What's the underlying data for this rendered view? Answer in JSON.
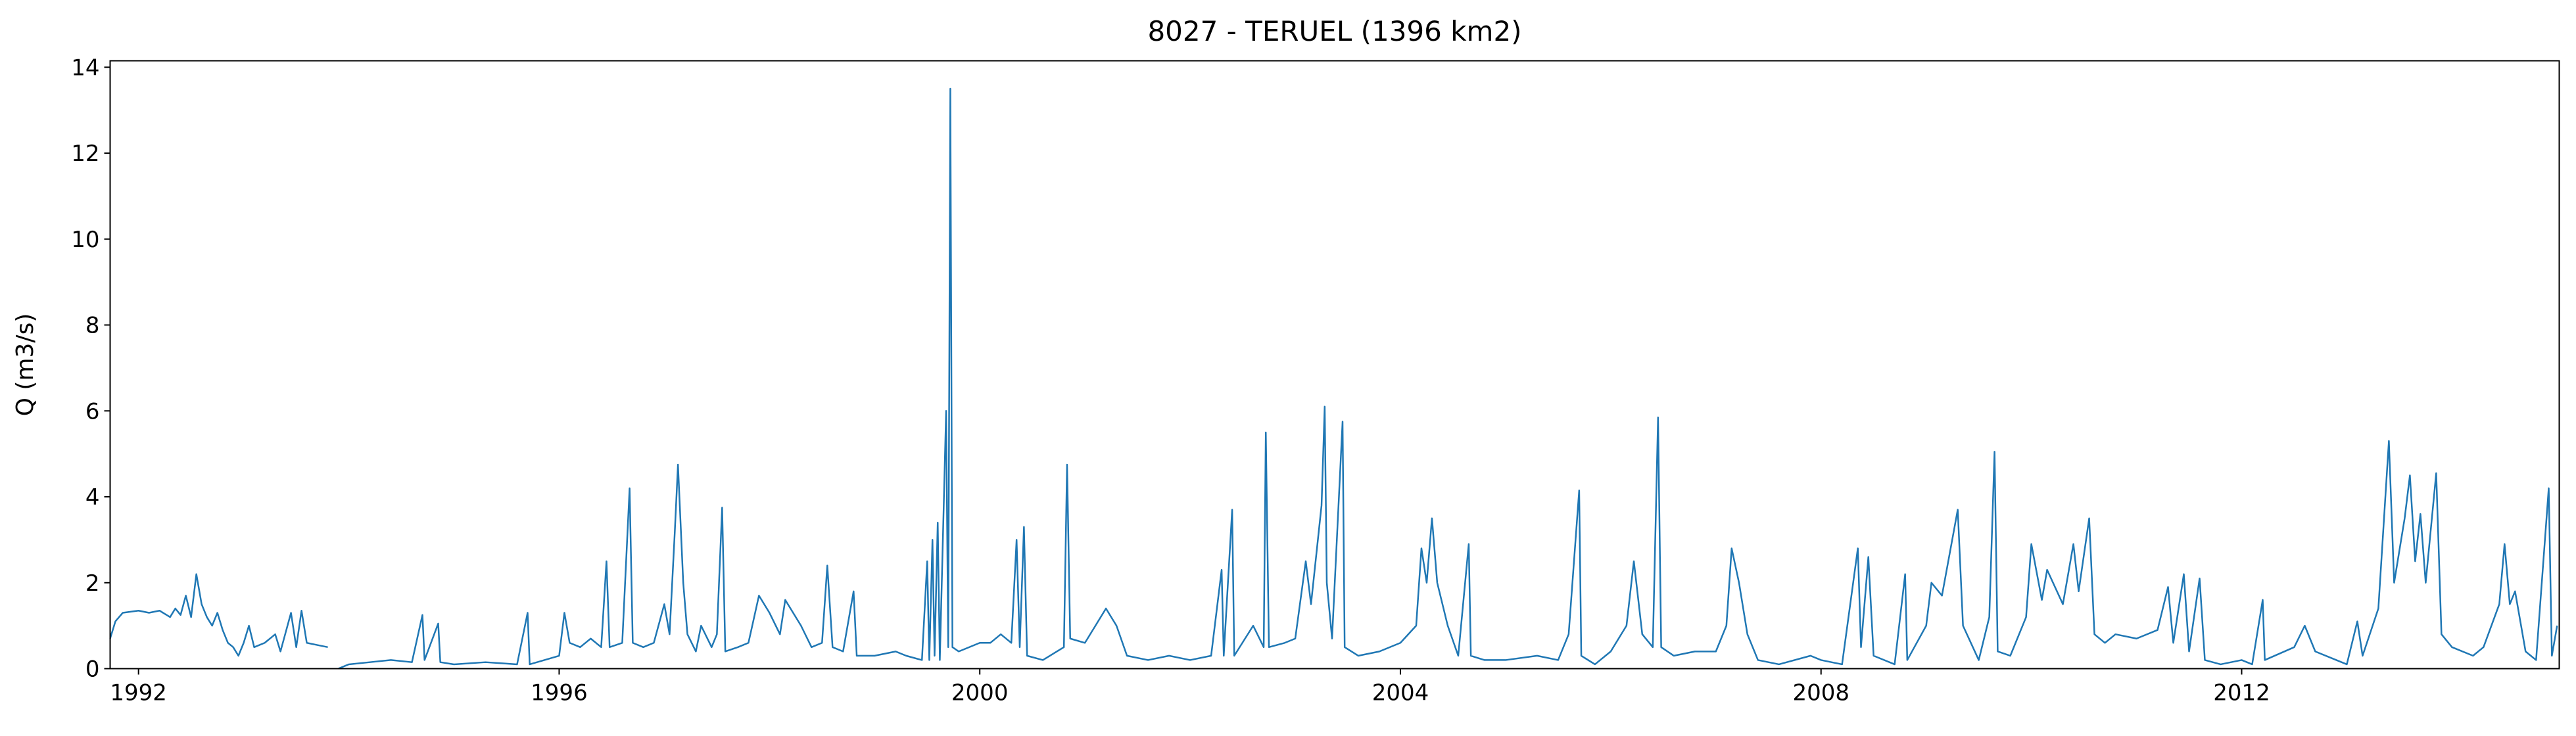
{
  "chart_data": {
    "type": "line",
    "title": "8027 - TERUEL (1396 km2)",
    "y_label": "Q (m3/s)",
    "color": "#1f77b4",
    "xlim": [
      1991.73,
      2015.02
    ],
    "xticks": [
      1992,
      1996,
      2000,
      2004,
      2008,
      2012
    ],
    "ylim": [
      0,
      14.15
    ],
    "yticks": [
      0,
      2,
      4,
      6,
      8,
      10,
      12,
      14
    ],
    "x": [
      1991.73,
      1991.78,
      1991.85,
      1992.0,
      1992.1,
      1992.2,
      1992.3,
      1992.35,
      1992.4,
      1992.45,
      1992.5,
      1992.55,
      1992.6,
      1992.65,
      1992.7,
      1992.75,
      1992.8,
      1992.85,
      1992.9,
      1992.95,
      1993.0,
      1993.05,
      1993.1,
      1993.2,
      1993.3,
      1993.35,
      1993.45,
      1993.5,
      1993.55,
      1993.6,
      1993.7,
      1993.8,
      1993.85,
      1993.9,
      1994.0,
      1994.2,
      1994.4,
      1994.6,
      1994.7,
      1994.72,
      1994.85,
      1994.87,
      1995.0,
      1995.3,
      1995.6,
      1995.7,
      1995.72,
      1996.0,
      1996.05,
      1996.1,
      1996.2,
      1996.3,
      1996.4,
      1996.45,
      1996.48,
      1996.6,
      1996.67,
      1996.7,
      1996.8,
      1996.9,
      1997.0,
      1997.05,
      1997.1,
      1997.13,
      1997.18,
      1997.22,
      1997.3,
      1997.35,
      1997.45,
      1997.5,
      1997.55,
      1997.58,
      1997.7,
      1997.8,
      1997.9,
      1998.0,
      1998.1,
      1998.15,
      1998.3,
      1998.4,
      1998.5,
      1998.55,
      1998.6,
      1998.7,
      1998.8,
      1998.83,
      1999.0,
      1999.2,
      1999.3,
      1999.45,
      1999.5,
      1999.52,
      1999.55,
      1999.57,
      1999.6,
      1999.62,
      1999.68,
      1999.7,
      1999.72,
      1999.74,
      1999.8,
      2000.0,
      2000.1,
      2000.2,
      2000.3,
      2000.35,
      2000.38,
      2000.42,
      2000.45,
      2000.6,
      2000.8,
      2000.83,
      2000.86,
      2001.0,
      2001.2,
      2001.3,
      2001.4,
      2001.6,
      2001.8,
      2002.0,
      2002.2,
      2002.3,
      2002.32,
      2002.4,
      2002.42,
      2002.6,
      2002.7,
      2002.72,
      2002.75,
      2002.9,
      2003.0,
      2003.1,
      2003.15,
      2003.25,
      2003.28,
      2003.3,
      2003.35,
      2003.45,
      2003.47,
      2003.6,
      2003.8,
      2004.0,
      2004.15,
      2004.2,
      2004.25,
      2004.3,
      2004.35,
      2004.45,
      2004.55,
      2004.65,
      2004.67,
      2004.8,
      2005.0,
      2005.3,
      2005.5,
      2005.6,
      2005.7,
      2005.72,
      2005.85,
      2006.0,
      2006.15,
      2006.22,
      2006.3,
      2006.4,
      2006.45,
      2006.48,
      2006.6,
      2006.8,
      2007.0,
      2007.1,
      2007.15,
      2007.22,
      2007.3,
      2007.4,
      2007.6,
      2007.9,
      2008.0,
      2008.2,
      2008.35,
      2008.38,
      2008.45,
      2008.5,
      2008.7,
      2008.8,
      2008.82,
      2009.0,
      2009.05,
      2009.15,
      2009.3,
      2009.35,
      2009.5,
      2009.6,
      2009.65,
      2009.68,
      2009.8,
      2009.95,
      2010.0,
      2010.1,
      2010.15,
      2010.3,
      2010.4,
      2010.45,
      2010.55,
      2010.6,
      2010.7,
      2010.8,
      2011.0,
      2011.2,
      2011.3,
      2011.35,
      2011.45,
      2011.5,
      2011.6,
      2011.65,
      2011.8,
      2012.0,
      2012.1,
      2012.2,
      2012.22,
      2012.5,
      2012.6,
      2012.7,
      2012.9,
      2013.0,
      2013.1,
      2013.15,
      2013.3,
      2013.4,
      2013.45,
      2013.55,
      2013.6,
      2013.65,
      2013.7,
      2013.75,
      2013.85,
      2013.9,
      2014.0,
      2014.2,
      2014.3,
      2014.45,
      2014.5,
      2014.55,
      2014.6,
      2014.7,
      2014.8,
      2014.92,
      2014.95,
      2015.0
    ],
    "values": [
      0.7,
      1.1,
      1.3,
      1.35,
      1.3,
      1.35,
      1.2,
      1.4,
      1.25,
      1.7,
      1.2,
      2.2,
      1.5,
      1.2,
      1.0,
      1.3,
      0.9,
      0.6,
      0.5,
      0.3,
      0.6,
      1.0,
      0.5,
      0.6,
      0.8,
      0.4,
      1.3,
      0.5,
      1.35,
      0.6,
      0.55,
      0.5,
      null,
      0.0,
      0.1,
      0.15,
      0.2,
      0.15,
      1.25,
      0.2,
      1.05,
      0.15,
      0.1,
      0.15,
      0.1,
      1.3,
      0.1,
      0.3,
      1.3,
      0.6,
      0.5,
      0.7,
      0.5,
      2.5,
      0.5,
      0.6,
      4.2,
      0.6,
      0.5,
      0.6,
      1.5,
      0.8,
      3.2,
      4.75,
      2.0,
      0.8,
      0.4,
      1.0,
      0.5,
      0.8,
      3.75,
      0.4,
      0.5,
      0.6,
      1.7,
      1.3,
      0.8,
      1.6,
      1.0,
      0.5,
      0.6,
      2.4,
      0.5,
      0.4,
      1.8,
      0.3,
      0.3,
      0.4,
      0.3,
      0.2,
      2.5,
      0.2,
      3.0,
      0.3,
      3.4,
      0.2,
      6.0,
      0.5,
      13.5,
      0.5,
      0.4,
      0.6,
      0.6,
      0.8,
      0.6,
      3.0,
      0.5,
      3.3,
      0.3,
      0.2,
      0.5,
      4.75,
      0.7,
      0.6,
      1.4,
      1.0,
      0.3,
      0.2,
      0.3,
      0.2,
      0.3,
      2.3,
      0.3,
      3.7,
      0.3,
      1.0,
      0.5,
      5.5,
      0.5,
      0.6,
      0.7,
      2.5,
      1.5,
      3.8,
      6.1,
      2.0,
      0.7,
      5.75,
      0.5,
      0.3,
      0.4,
      0.6,
      1.0,
      2.8,
      2.0,
      3.5,
      2.0,
      1.0,
      0.3,
      2.9,
      0.3,
      0.2,
      0.2,
      0.3,
      0.2,
      0.8,
      4.15,
      0.3,
      0.1,
      0.4,
      1.0,
      2.5,
      0.8,
      0.5,
      5.85,
      0.5,
      0.3,
      0.4,
      0.4,
      1.0,
      2.8,
      2.0,
      0.8,
      0.2,
      0.1,
      0.3,
      0.2,
      0.1,
      2.8,
      0.5,
      2.6,
      0.3,
      0.1,
      2.2,
      0.2,
      1.0,
      2.0,
      1.7,
      3.7,
      1.0,
      0.2,
      1.2,
      5.05,
      0.4,
      0.3,
      1.2,
      2.9,
      1.6,
      2.3,
      1.5,
      2.9,
      1.8,
      3.5,
      0.8,
      0.6,
      0.8,
      0.7,
      0.9,
      1.9,
      0.6,
      2.2,
      0.4,
      2.1,
      0.2,
      0.1,
      0.2,
      0.1,
      1.6,
      0.2,
      0.5,
      1.0,
      0.4,
      0.2,
      0.1,
      1.1,
      0.3,
      1.4,
      5.3,
      2.0,
      3.5,
      4.5,
      2.5,
      3.6,
      2.0,
      4.55,
      0.8,
      0.5,
      0.3,
      0.5,
      1.5,
      2.9,
      1.5,
      1.8,
      0.4,
      0.2,
      4.2,
      0.3,
      1.0
    ]
  }
}
